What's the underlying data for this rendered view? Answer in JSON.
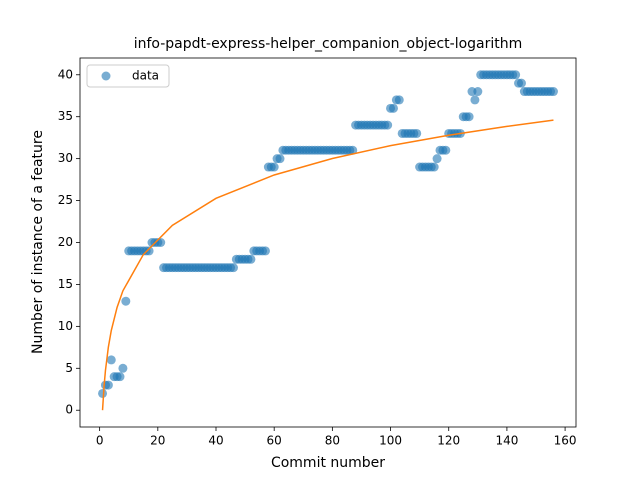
{
  "chart_data": {
    "type": "scatter",
    "title": "info-papdt-express-helper_companion_object-logarithm",
    "xlabel": "Commit number",
    "ylabel": "Number of instance of a feature",
    "xlim": [
      -6.75,
      163.75
    ],
    "ylim": [
      -2,
      42
    ],
    "xticks": [
      0,
      20,
      40,
      60,
      80,
      100,
      120,
      140,
      160
    ],
    "yticks": [
      0,
      5,
      10,
      15,
      20,
      25,
      30,
      35,
      40
    ],
    "legend": "upper left",
    "series": [
      {
        "name": "data",
        "color": "#1f77b4",
        "style": "markers",
        "x": [
          1,
          2,
          3,
          4,
          5,
          6,
          7,
          8,
          9,
          10,
          11,
          12,
          13,
          14,
          15,
          16,
          17,
          18,
          19,
          20,
          21,
          22,
          23,
          24,
          25,
          26,
          27,
          28,
          29,
          30,
          31,
          32,
          33,
          34,
          35,
          36,
          37,
          38,
          39,
          40,
          41,
          42,
          43,
          44,
          45,
          46,
          47,
          48,
          49,
          50,
          51,
          52,
          53,
          54,
          55,
          56,
          57,
          58,
          59,
          60,
          61,
          62,
          63,
          64,
          65,
          66,
          67,
          68,
          69,
          70,
          71,
          72,
          73,
          74,
          75,
          76,
          77,
          78,
          79,
          80,
          81,
          82,
          83,
          84,
          85,
          86,
          87,
          88,
          89,
          90,
          91,
          92,
          93,
          94,
          95,
          96,
          97,
          98,
          99,
          100,
          101,
          102,
          103,
          104,
          105,
          106,
          107,
          108,
          109,
          110,
          111,
          112,
          113,
          114,
          115,
          116,
          117,
          118,
          119,
          120,
          121,
          122,
          123,
          124,
          125,
          126,
          127,
          128,
          129,
          130,
          131,
          132,
          133,
          134,
          135,
          136,
          137,
          138,
          139,
          140,
          141,
          142,
          143,
          144,
          145,
          146,
          147,
          148,
          149,
          150,
          151,
          152,
          153,
          154,
          155,
          156
        ],
        "values": [
          2,
          3,
          3,
          6,
          4,
          4,
          4,
          5,
          13,
          19,
          19,
          19,
          19,
          19,
          19,
          19,
          19,
          20,
          20,
          20,
          20,
          17,
          17,
          17,
          17,
          17,
          17,
          17,
          17,
          17,
          17,
          17,
          17,
          17,
          17,
          17,
          17,
          17,
          17,
          17,
          17,
          17,
          17,
          17,
          17,
          17,
          18,
          18,
          18,
          18,
          18,
          18,
          19,
          19,
          19,
          19,
          19,
          29,
          29,
          29,
          30,
          30,
          31,
          31,
          31,
          31,
          31,
          31,
          31,
          31,
          31,
          31,
          31,
          31,
          31,
          31,
          31,
          31,
          31,
          31,
          31,
          31,
          31,
          31,
          31,
          31,
          31,
          34,
          34,
          34,
          34,
          34,
          34,
          34,
          34,
          34,
          34,
          34,
          34,
          36,
          36,
          37,
          37,
          33,
          33,
          33,
          33,
          33,
          33,
          29,
          29,
          29,
          29,
          29,
          29,
          30,
          31,
          31,
          31,
          33,
          33,
          33,
          33,
          33,
          35,
          35,
          35,
          38,
          37,
          38,
          40,
          40,
          40,
          40,
          40,
          40,
          40,
          40,
          40,
          40,
          40,
          40,
          40,
          39,
          39,
          38,
          38,
          38,
          38,
          38,
          38,
          38,
          38,
          38,
          38,
          38
        ]
      },
      {
        "color": "#ff7f0e",
        "style": "line",
        "x": [
          1,
          1.5,
          2,
          3,
          4,
          6,
          8,
          15,
          25,
          40,
          60,
          80,
          100,
          120,
          140,
          156
        ],
        "values": [
          0,
          2.78,
          4.75,
          7.53,
          9.5,
          12.27,
          14.24,
          18.55,
          22.05,
          25.27,
          28.05,
          30.02,
          31.55,
          32.79,
          33.85,
          34.59
        ]
      }
    ]
  }
}
